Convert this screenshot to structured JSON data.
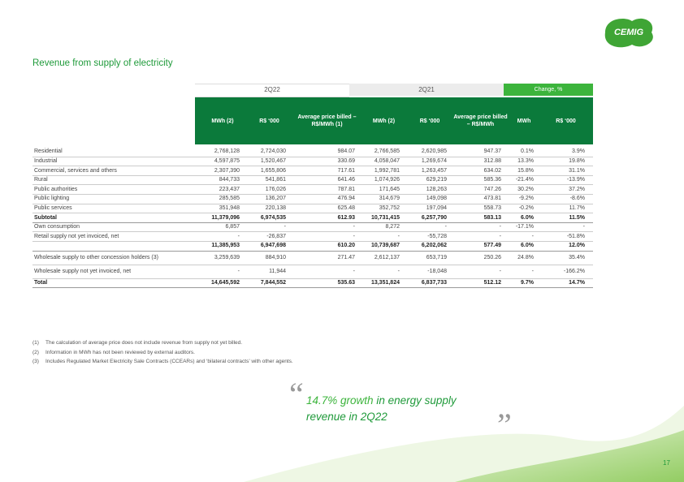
{
  "logo": "CEMIG",
  "title": "Revenue from supply of electricity",
  "table": {
    "groups": [
      "2Q22",
      "2Q21",
      "Change, %"
    ],
    "columns": [
      "MWh (2)",
      "R$ ‘000",
      "Average price billed – R$/MWh (1)",
      "MWh (2)",
      "R$ ‘000",
      "Average price billed – R$/MWh",
      "MWh",
      "R$ ‘000"
    ],
    "rows": [
      {
        "label": "Residential",
        "cells": [
          "2,768,128",
          "2,724,030",
          "984.07",
          "2,766,585",
          "2,620,985",
          "947.37",
          "0.1%",
          "3.9%"
        ]
      },
      {
        "label": "Industrial",
        "cells": [
          "4,597,875",
          "1,520,467",
          "330.69",
          "4,058,047",
          "1,269,674",
          "312.88",
          "13.3%",
          "19.8%"
        ]
      },
      {
        "label": "Commercial, services and others",
        "cells": [
          "2,307,390",
          "1,655,806",
          "717.61",
          "1,992,781",
          "1,263,457",
          "634.02",
          "15.8%",
          "31.1%"
        ]
      },
      {
        "label": "Rural",
        "cells": [
          "844,733",
          "541,861",
          "641.46",
          "1,074,926",
          "629,219",
          "585.36",
          "-21.4%",
          "-13.9%"
        ]
      },
      {
        "label": "Public authorities",
        "cells": [
          "223,437",
          "176,026",
          "787.81",
          "171,645",
          "128,263",
          "747.26",
          "30.2%",
          "37.2%"
        ]
      },
      {
        "label": "Public lighting",
        "cells": [
          "285,585",
          "136,207",
          "476.94",
          "314,679",
          "149,098",
          "473.81",
          "-9.2%",
          "-8.6%"
        ]
      },
      {
        "label": "Public services",
        "cells": [
          "351,948",
          "220,138",
          "625.48",
          "352,752",
          "197,094",
          "558.73",
          "-0.2%",
          "11.7%"
        ]
      },
      {
        "label": "Subtotal",
        "bold": true,
        "cells": [
          "11,379,096",
          "6,974,535",
          "612.93",
          "10,731,415",
          "6,257,790",
          "583.13",
          "6.0%",
          "11.5%"
        ]
      },
      {
        "label": "Own consumption",
        "cells": [
          "6,857",
          "-",
          "-",
          "8,272",
          "-",
          "-",
          "-17.1%",
          "-"
        ]
      },
      {
        "label": "Retail supply not yet invoiced, net",
        "cells": [
          "-",
          "-26,837",
          "-",
          "-",
          "-55,728",
          "-",
          "-",
          "-51.8%"
        ]
      },
      {
        "label": null,
        "bold": true,
        "cells": [
          "11,385,953",
          "6,947,698",
          "610.20",
          "10,739,687",
          "6,202,062",
          "577.49",
          "6.0%",
          "12.0%"
        ]
      },
      {
        "label": "Wholesale supply to other concession holders (3)",
        "tall": true,
        "cells": [
          "3,259,639",
          "884,910",
          "271.47",
          "2,612,137",
          "653,719",
          "250.26",
          "24.8%",
          "35.4%"
        ]
      },
      {
        "label": "Wholesale supply not yet invoiced, net",
        "tall": true,
        "cells": [
          "-",
          "11,944",
          "-",
          "-",
          "-18,048",
          "-",
          "-",
          "-166.2%"
        ]
      },
      {
        "label": "Total",
        "bold": true,
        "cells": [
          "14,645,592",
          "7,844,552",
          "535.63",
          "13,351,824",
          "6,837,733",
          "512.12",
          "9.7%",
          "14.7%"
        ]
      }
    ]
  },
  "footnotes": [
    {
      "mark": "(1)",
      "text": "The calculation of average price does not include revenue from supply not yet billed."
    },
    {
      "mark": "(2)",
      "text": "Information in MWh has not been reviewed by external auditors."
    },
    {
      "mark": "(3)",
      "text": "Includes Regulated Market Electricity Sale Contracts (CCEARs) and ‘bilateral contracts’ with other agents."
    }
  ],
  "quote": {
    "highlight": "14.7% growth",
    "text": " in energy supply revenue in 2Q22",
    "open": "“",
    "close": "”"
  },
  "page_number": "17"
}
